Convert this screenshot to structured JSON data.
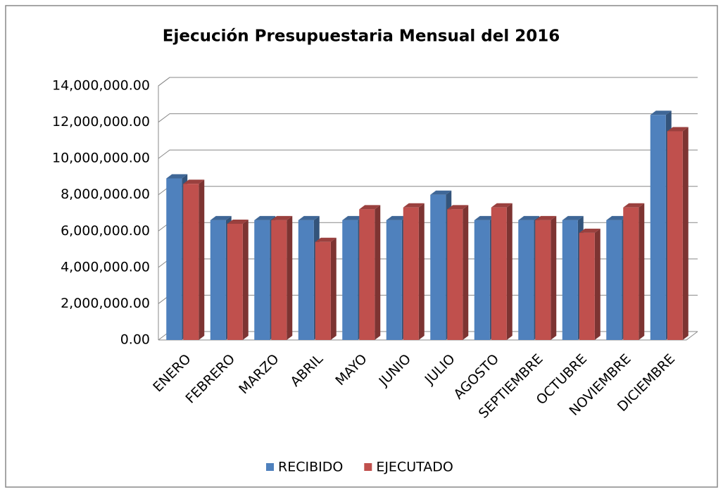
{
  "chart_data": {
    "type": "bar3d",
    "title": "Ejecución Presupuestaria Mensual del 2016",
    "categories": [
      "ENERO",
      "FEBRERO",
      "MARZO",
      "ABRIL",
      "MAYO",
      "JUNIO",
      "JULIO",
      "AGOSTO",
      "SEPTIEMBRE",
      "OCTUBRE",
      "NOVIEMBRE",
      "DICIEMBRE"
    ],
    "series": [
      {
        "name": "RECIBIDO",
        "color": "#4f81bd",
        "values": [
          8900000,
          6600000,
          6600000,
          6600000,
          6600000,
          6600000,
          8000000,
          6600000,
          6600000,
          6600000,
          6600000,
          12400000
        ]
      },
      {
        "name": "EJECUTADO",
        "color": "#c0504d",
        "values": [
          8600000,
          6400000,
          6600000,
          5400000,
          7200000,
          7300000,
          7200000,
          7300000,
          6600000,
          5900000,
          7300000,
          11500000
        ]
      }
    ],
    "ylim": [
      0,
      14000000
    ],
    "yticks": [
      {
        "value": 0,
        "label": "0.00"
      },
      {
        "value": 2000000,
        "label": "2,000,000.00"
      },
      {
        "value": 4000000,
        "label": "4,000,000.00"
      },
      {
        "value": 6000000,
        "label": "6,000,000.00"
      },
      {
        "value": 8000000,
        "label": "8,000,000.00"
      },
      {
        "value": 10000000,
        "label": "10,000,000.00"
      },
      {
        "value": 12000000,
        "label": "12,000,000.00"
      },
      {
        "value": 14000000,
        "label": "14,000,000.00"
      }
    ],
    "grid": true,
    "legend": "bottom"
  }
}
